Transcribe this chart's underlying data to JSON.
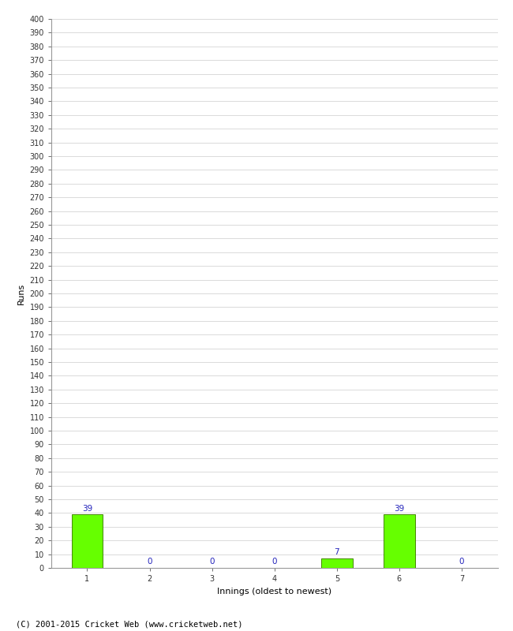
{
  "categories": [
    1,
    2,
    3,
    4,
    5,
    6,
    7
  ],
  "values": [
    39,
    0,
    0,
    0,
    7,
    39,
    0
  ],
  "bar_color": "#66ff00",
  "bar_edge_color": "#448800",
  "xlabel": "Innings (oldest to newest)",
  "ylabel": "Runs",
  "ylim": [
    0,
    400
  ],
  "label_color": "#2222bb",
  "label_fontsize": 7.5,
  "axis_label_fontsize": 8,
  "tick_fontsize": 7,
  "footer": "(C) 2001-2015 Cricket Web (www.cricketweb.net)",
  "footer_fontsize": 7.5,
  "background_color": "#ffffff",
  "grid_color": "#cccccc"
}
